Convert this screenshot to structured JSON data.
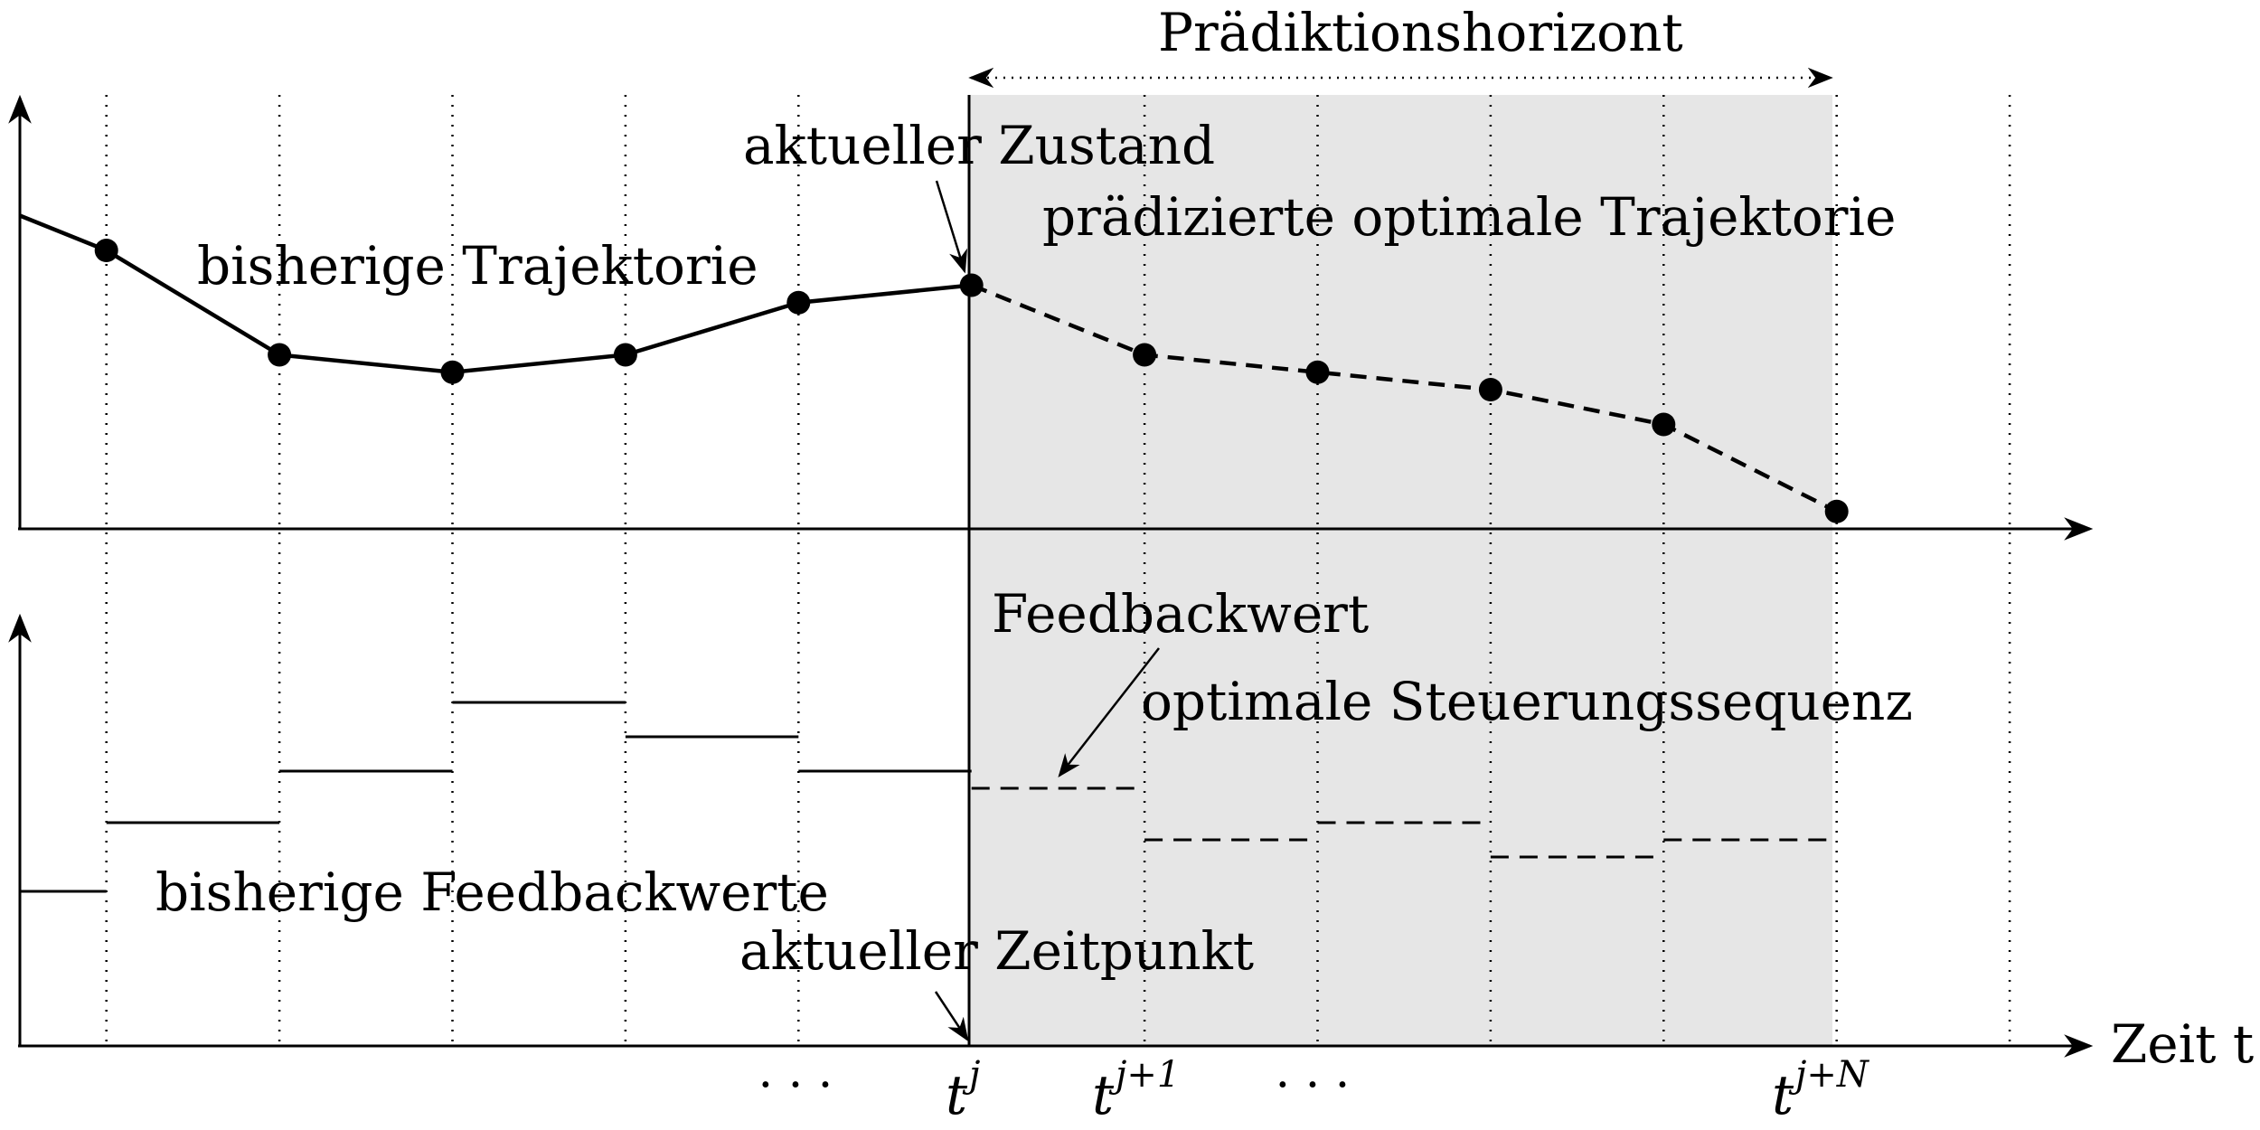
{
  "labels": {
    "horizon": "Prädiktionshorizont",
    "current_state": "aktueller Zustand",
    "past_trajectory": "bisherige Trajektorie",
    "predicted_trajectory": "prädizierte optimale Trajektorie",
    "feedback_value": "Feedbackwert",
    "optimal_control": "optimale Steuerungssequenz",
    "past_feedback": "bisherige Feedbackwerte",
    "current_time": "aktueller Zeitpunkt",
    "time_axis": "Zeit t"
  },
  "ticks": {
    "dots_left": "· · ·",
    "tj_base": "t",
    "tj_sup": "j",
    "tj1_base": "t",
    "tj1_sup": "j+1",
    "dots_mid": "· · ·",
    "tjN_base": "t",
    "tjN_sup": "j+N"
  },
  "colors": {
    "horizon_fill": "#e6e6e6",
    "ink": "#000000"
  },
  "trajectory": {
    "past": [
      0.9,
      0.8,
      0.5,
      0.45,
      0.5,
      0.65,
      0.7
    ],
    "predicted": [
      0.7,
      0.5,
      0.45,
      0.4,
      0.3,
      0.05
    ]
  },
  "control": {
    "past": [
      0.45,
      0.65,
      0.8,
      1.0,
      0.9,
      0.8
    ],
    "predicted": [
      0.75,
      0.6,
      0.65,
      0.55,
      0.6
    ]
  }
}
